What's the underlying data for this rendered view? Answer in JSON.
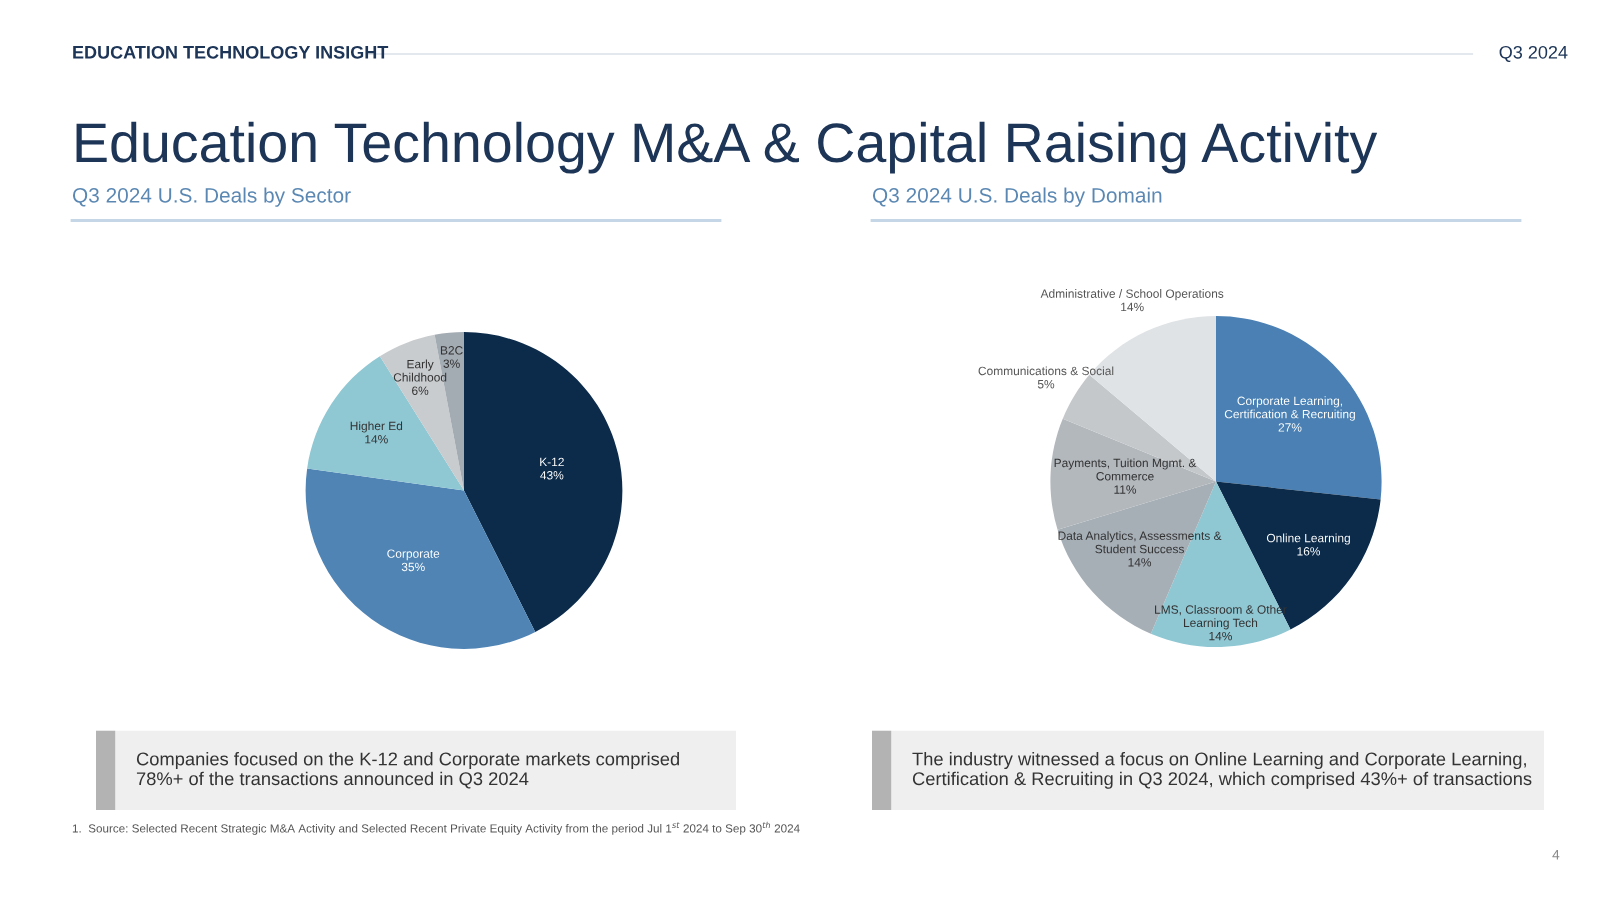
{
  "chart_data": [
    {
      "type": "pie",
      "title": "Q3 2024 U.S. Deals by Sector",
      "categories": [
        "K-12",
        "Corporate",
        "Higher Ed",
        "Early\nChildhood",
        "B2C"
      ],
      "values": [
        43,
        35,
        14,
        6,
        3
      ],
      "value_labels": [
        "43%",
        "35%",
        "14%",
        "6%",
        "3%"
      ],
      "colors": [
        "#0c2b4b",
        "#4f84b5",
        "#8fc7d3",
        "#c9cccf",
        "#a3abb3"
      ],
      "annotations": [
        "EDUCATION TECHNOLOGY INSIGHT",
        "Q3 2024",
        "Education Technology M&A & Capital Raising Activity",
        "Companies focused on the K-12 and Corporate markets comprised\n78%+ of the transactions announced in Q3 2024",
        "1.  Source: Selected Recent Strategic M&A Activity and Selected Recent Private Equity Activity from the period Jul 1$^{st}$ 2024 to Sep 30$^{th}$ 2024",
        "4"
      ]
    },
    {
      "type": "pie",
      "title": "Q3 2024 U.S. Deals by Domain",
      "categories": [
        "Corporate Learning,\nCertification & Recruiting",
        "Online Learning",
        "LMS, Classroom & Other\nLearning Tech",
        "Data Analytics, Assessments &\nStudent Success",
        "Payments, Tuition Mgmt. &\nCommerce",
        "Communications & Social",
        "Administrative / School Operations"
      ],
      "values": [
        27,
        16,
        14,
        14,
        11,
        5,
        14
      ],
      "value_labels": [
        "27%",
        "16%",
        "14%",
        "14%",
        "11%",
        "5%",
        "14%"
      ],
      "colors": [
        "#4a80b3",
        "#0c2b4b",
        "#8fc7d3",
        "#a6aeb6",
        "#b3b8bd",
        "#c5c8cb",
        "#e0e3e6"
      ],
      "annotations": [
        "The industry witnessed a focus on Online Learning and Corporate Learning,\nCertification & Recruiting in Q3 2024, which comprised 43%+ of transactions"
      ]
    }
  ]
}
